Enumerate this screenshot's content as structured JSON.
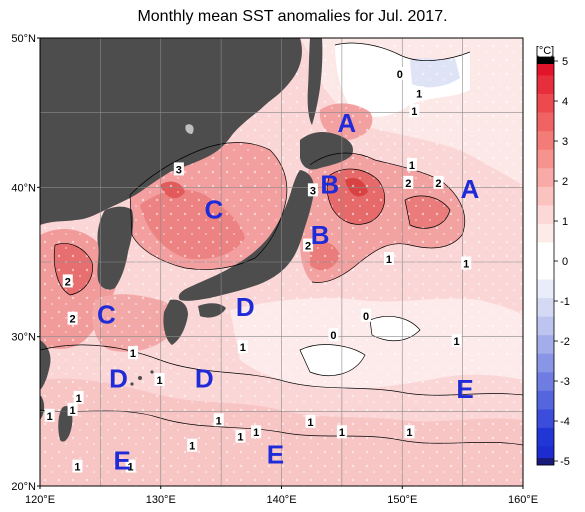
{
  "title": "Monthly mean SST anomalies for Jul. 2017.",
  "map": {
    "lat_labels": [
      "50°N",
      "40°N",
      "30°N",
      "20°N"
    ],
    "lon_labels": [
      "120°E",
      "130°E",
      "140°E",
      "150°E",
      "160°E"
    ],
    "region_labels": [
      {
        "text": "A",
        "lon": 145.4,
        "lat": 44.3
      },
      {
        "text": "A",
        "lon": 155.6,
        "lat": 39.9
      },
      {
        "text": "B",
        "lon": 144.0,
        "lat": 40.2
      },
      {
        "text": "B",
        "lon": 143.2,
        "lat": 36.8
      },
      {
        "text": "C",
        "lon": 134.4,
        "lat": 38.5
      },
      {
        "text": "C",
        "lon": 125.5,
        "lat": 31.5
      },
      {
        "text": "D",
        "lon": 137.0,
        "lat": 32.0
      },
      {
        "text": "D",
        "lon": 126.5,
        "lat": 27.2
      },
      {
        "text": "D",
        "lon": 133.6,
        "lat": 27.2
      },
      {
        "text": "E",
        "lon": 155.2,
        "lat": 26.5
      },
      {
        "text": "E",
        "lon": 139.5,
        "lat": 22.1
      },
      {
        "text": "E",
        "lon": 126.8,
        "lat": 21.7
      }
    ],
    "contour_labels": [
      {
        "text": "3",
        "lon": 131.5,
        "lat": 41.2
      },
      {
        "text": "3",
        "lon": 142.6,
        "lat": 39.8
      },
      {
        "text": "2",
        "lon": 142.2,
        "lat": 36.1
      },
      {
        "text": "2",
        "lon": 122.3,
        "lat": 33.7
      },
      {
        "text": "2",
        "lon": 122.7,
        "lat": 31.2
      },
      {
        "text": "0",
        "lon": 149.8,
        "lat": 47.6
      },
      {
        "text": "1",
        "lon": 151.4,
        "lat": 46.3
      },
      {
        "text": "1",
        "lon": 151.0,
        "lat": 45.1
      },
      {
        "text": "1",
        "lon": 150.8,
        "lat": 41.5
      },
      {
        "text": "2",
        "lon": 150.5,
        "lat": 40.3
      },
      {
        "text": "2",
        "lon": 153.0,
        "lat": 40.3
      },
      {
        "text": "1",
        "lon": 148.9,
        "lat": 35.2
      },
      {
        "text": "1",
        "lon": 155.3,
        "lat": 34.9
      },
      {
        "text": "0",
        "lon": 147.0,
        "lat": 31.4
      },
      {
        "text": "0",
        "lon": 144.3,
        "lat": 30.1
      },
      {
        "text": "1",
        "lon": 154.5,
        "lat": 29.7
      },
      {
        "text": "1",
        "lon": 136.8,
        "lat": 29.3
      },
      {
        "text": "1",
        "lon": 127.7,
        "lat": 28.9
      },
      {
        "text": "1",
        "lon": 129.9,
        "lat": 27.1
      },
      {
        "text": "1",
        "lon": 123.2,
        "lat": 25.9
      },
      {
        "text": "1",
        "lon": 122.7,
        "lat": 25.1
      },
      {
        "text": "1",
        "lon": 120.8,
        "lat": 24.7
      },
      {
        "text": "1",
        "lon": 134.8,
        "lat": 24.4
      },
      {
        "text": "1",
        "lon": 137.9,
        "lat": 23.6
      },
      {
        "text": "1",
        "lon": 136.6,
        "lat": 23.3
      },
      {
        "text": "1",
        "lon": 132.6,
        "lat": 22.7
      },
      {
        "text": "1",
        "lon": 142.4,
        "lat": 24.3
      },
      {
        "text": "1",
        "lon": 145.0,
        "lat": 23.6
      },
      {
        "text": "1",
        "lon": 150.6,
        "lat": 23.6
      },
      {
        "text": "1",
        "lon": 123.1,
        "lat": 21.3
      },
      {
        "text": "1",
        "lon": 127.5,
        "lat": 21.3
      }
    ]
  },
  "colorbar": {
    "unit": "[°C]",
    "ticks": [
      "5",
      "4",
      "3",
      "2",
      "1",
      "0",
      "-1",
      "-2",
      "-3",
      "-4",
      "-5"
    ]
  }
}
